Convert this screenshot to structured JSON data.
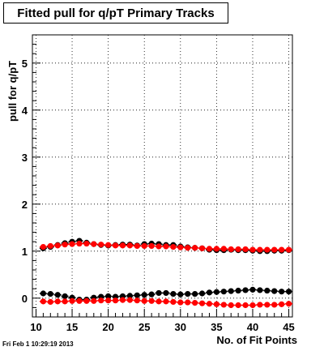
{
  "title": "Fitted pull for q/pT Primary Tracks",
  "footer": "Fri Feb  1 10:29:19 2013",
  "chart_data": {
    "type": "scatter",
    "xlabel": "No. of Fit Points",
    "ylabel": "pull for q/pT",
    "xlim": [
      9.5,
      45.5
    ],
    "ylim": [
      -0.4,
      5.6
    ],
    "grid": true,
    "xticks": [
      10,
      15,
      20,
      25,
      30,
      35,
      40,
      45
    ],
    "yticks": [
      0,
      1,
      2,
      3,
      4,
      5
    ],
    "x": [
      11,
      12,
      13,
      14,
      15,
      16,
      17,
      18,
      19,
      20,
      21,
      22,
      23,
      24,
      25,
      26,
      27,
      28,
      29,
      30,
      31,
      32,
      33,
      34,
      35,
      36,
      37,
      38,
      39,
      40,
      41,
      42,
      43,
      44,
      45
    ],
    "series": [
      {
        "color": "#000000",
        "values": [
          1.06,
          1.09,
          1.13,
          1.17,
          1.2,
          1.22,
          1.18,
          1.15,
          1.13,
          1.12,
          1.13,
          1.14,
          1.14,
          1.12,
          1.15,
          1.16,
          1.15,
          1.13,
          1.13,
          1.1,
          1.08,
          1.07,
          1.06,
          1.03,
          1.02,
          1.02,
          1.03,
          1.02,
          1.02,
          1.01,
          1.0,
          1.0,
          1.01,
          1.01,
          1.02
        ]
      },
      {
        "color": "#ff0000",
        "values": [
          1.09,
          1.11,
          1.12,
          1.14,
          1.15,
          1.16,
          1.16,
          1.15,
          1.14,
          1.13,
          1.12,
          1.12,
          1.12,
          1.11,
          1.11,
          1.11,
          1.1,
          1.1,
          1.09,
          1.08,
          1.07,
          1.07,
          1.06,
          1.05,
          1.05,
          1.05,
          1.04,
          1.04,
          1.04,
          1.03,
          1.03,
          1.03,
          1.03,
          1.03,
          1.03
        ]
      },
      {
        "color": "#000000",
        "values": [
          0.1,
          0.09,
          0.07,
          0.04,
          0.01,
          -0.03,
          -0.03,
          0.01,
          0.03,
          0.04,
          0.03,
          0.04,
          0.05,
          0.06,
          0.07,
          0.08,
          0.11,
          0.11,
          0.09,
          0.08,
          0.09,
          0.09,
          0.1,
          0.12,
          0.13,
          0.14,
          0.15,
          0.16,
          0.17,
          0.18,
          0.17,
          0.16,
          0.15,
          0.14,
          0.14
        ]
      },
      {
        "color": "#ff0000",
        "values": [
          -0.07,
          -0.08,
          -0.07,
          -0.07,
          -0.06,
          -0.06,
          -0.06,
          -0.06,
          -0.05,
          -0.05,
          -0.05,
          -0.04,
          -0.04,
          -0.05,
          -0.06,
          -0.06,
          -0.07,
          -0.07,
          -0.08,
          -0.09,
          -0.09,
          -0.1,
          -0.11,
          -0.12,
          -0.13,
          -0.14,
          -0.15,
          -0.15,
          -0.15,
          -0.15,
          -0.14,
          -0.14,
          -0.14,
          -0.13,
          -0.12
        ]
      }
    ]
  }
}
